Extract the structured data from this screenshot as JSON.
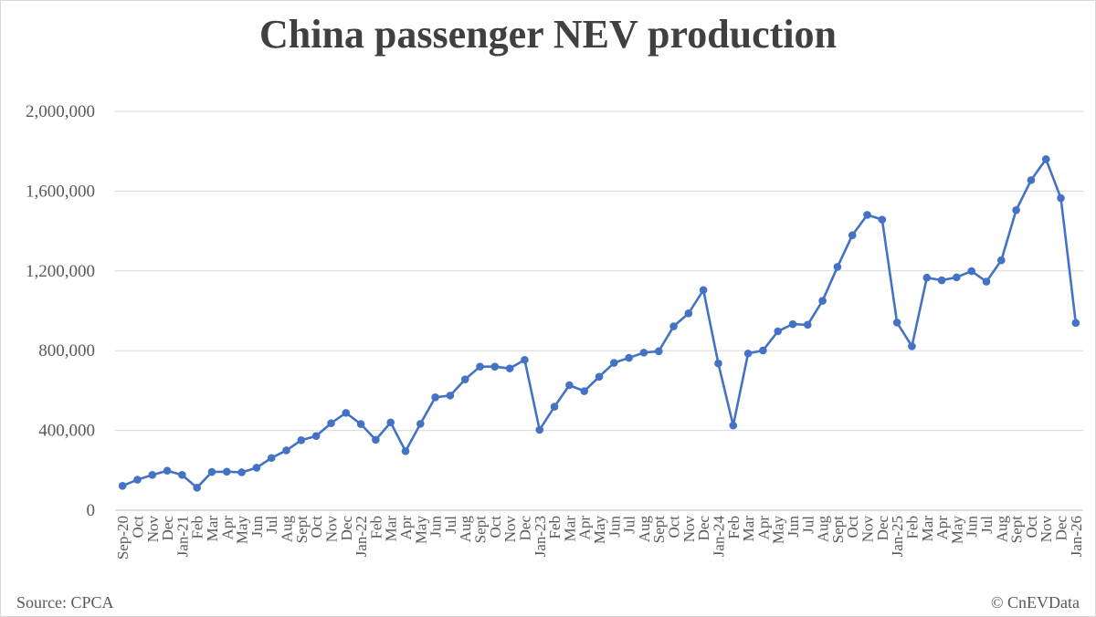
{
  "chart_data": {
    "type": "line",
    "title": "China passenger NEV production",
    "xlabel": "",
    "ylabel": "",
    "ylim": [
      0,
      2000000
    ],
    "yticks": [
      0,
      400000,
      800000,
      1200000,
      1600000,
      2000000
    ],
    "ytick_labels": [
      "0",
      "400,000",
      "800,000",
      "1,200,000",
      "1,600,000",
      "2,000,000"
    ],
    "grid": true,
    "categories": [
      "Sep-20",
      "Oct",
      "Nov",
      "Dec",
      "Jan-21",
      "Feb",
      "Mar",
      "Apr",
      "May",
      "Jun",
      "Jul",
      "Aug",
      "Sept",
      "Oct",
      "Nov",
      "Dec",
      "Jan-22",
      "Feb",
      "Mar",
      "Apr",
      "May",
      "Jun",
      "Jul",
      "Aug",
      "Sept",
      "Oct",
      "Nov",
      "Dec",
      "Jan-23",
      "Feb",
      "Mar",
      "Apr",
      "May",
      "Jun",
      "Jul",
      "Aug",
      "Sept",
      "Oct",
      "Nov",
      "Dec",
      "Jan-24",
      "Feb",
      "Mar",
      "Apr",
      "May",
      "Jun",
      "Jul",
      "Aug",
      "Sept",
      "Oct",
      "Nov",
      "Dec",
      "Jan-25",
      "Feb",
      "Mar",
      "Apr",
      "May",
      "Jun",
      "Jul",
      "Aug",
      "Sept",
      "Oct",
      "Nov",
      "Dec",
      "Jan-26"
    ],
    "series": [
      {
        "name": "Passenger NEV production",
        "color": "#4472c4",
        "values": [
          122000,
          153000,
          177000,
          198000,
          177000,
          113000,
          192000,
          193000,
          190000,
          213000,
          262000,
          300000,
          351000,
          372000,
          436000,
          488000,
          432000,
          353000,
          440000,
          296000,
          433000,
          566000,
          575000,
          656000,
          720000,
          720000,
          711000,
          754000,
          403000,
          519000,
          627000,
          597000,
          669000,
          739000,
          764000,
          790000,
          797000,
          922000,
          987000,
          1104000,
          736000,
          425000,
          786000,
          801000,
          897000,
          933000,
          930000,
          1050000,
          1220000,
          1379000,
          1481000,
          1457000,
          941000,
          822000,
          1166000,
          1153000,
          1168000,
          1199000,
          1146000,
          1253000,
          1505000,
          1655000,
          1760000,
          1565000,
          939000
        ]
      }
    ]
  },
  "footer": {
    "source": "Source: CPCA",
    "copyright": "© CnEVData"
  }
}
